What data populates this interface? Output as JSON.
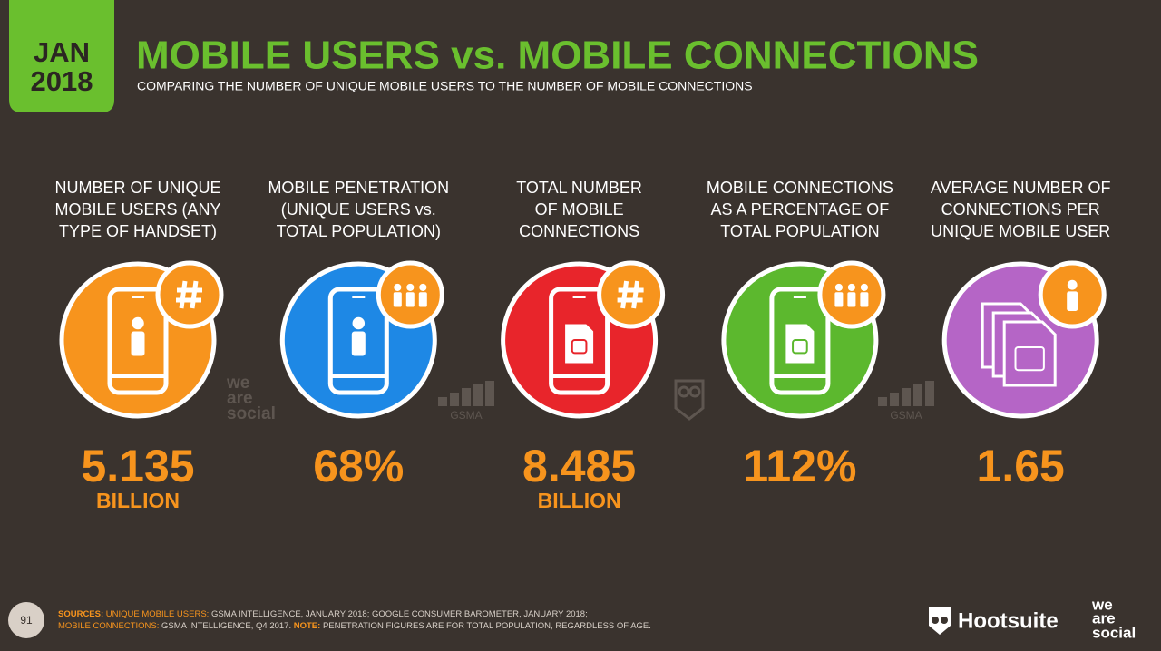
{
  "header": {
    "badge": {
      "month": "JAN",
      "year": "2018"
    },
    "title": "MOBILE USERS vs. MOBILE CONNECTIONS",
    "subtitle": "COMPARING THE NUMBER OF UNIQUE MOBILE USERS TO THE NUMBER OF MOBILE CONNECTIONS"
  },
  "stats": [
    {
      "label": [
        "NUMBER OF UNIQUE",
        "MOBILE USERS (ANY",
        "TYPE OF HANDSET)"
      ],
      "value": "5.135",
      "unit": "BILLION",
      "color": "#f7941d"
    },
    {
      "label": [
        "MOBILE PENETRATION",
        "(UNIQUE USERS vs.",
        "TOTAL POPULATION)"
      ],
      "value": "68%",
      "color": "#1e88e5"
    },
    {
      "label": [
        "TOTAL NUMBER",
        "OF MOBILE",
        "CONNECTIONS"
      ],
      "value": "8.485",
      "unit": "BILLION",
      "color": "#e8252b"
    },
    {
      "label": [
        "MOBILE CONNECTIONS",
        "AS A PERCENTAGE OF",
        "TOTAL POPULATION"
      ],
      "value": "112%",
      "color": "#5cb82e"
    },
    {
      "label": [
        "AVERAGE NUMBER OF",
        "CONNECTIONS PER",
        "UNIQUE MOBILE USER"
      ],
      "value": "1.65",
      "color": "#b565c6"
    }
  ],
  "watermarks": {
    "we_are_social": [
      "we",
      "are",
      "social"
    ],
    "gsma": "GSMA"
  },
  "footer": {
    "page": "91",
    "line1": {
      "label": "SOURCES:",
      "label2": "UNIQUE MOBILE USERS:",
      "text": "GSMA INTELLIGENCE, JANUARY 2018; GOOGLE CONSUMER BAROMETER, JANUARY 2018;"
    },
    "line2": {
      "label": "MOBILE CONNECTIONS:",
      "text": "GSMA INTELLIGENCE, Q4 2017.",
      "label2": "NOTE:",
      "text2": "PENETRATION FIGURES ARE FOR TOTAL POPULATION, REGARDLESS OF AGE."
    },
    "hootsuite": "Hootsuite",
    "we_are_social": [
      "we",
      "are",
      "social"
    ]
  }
}
